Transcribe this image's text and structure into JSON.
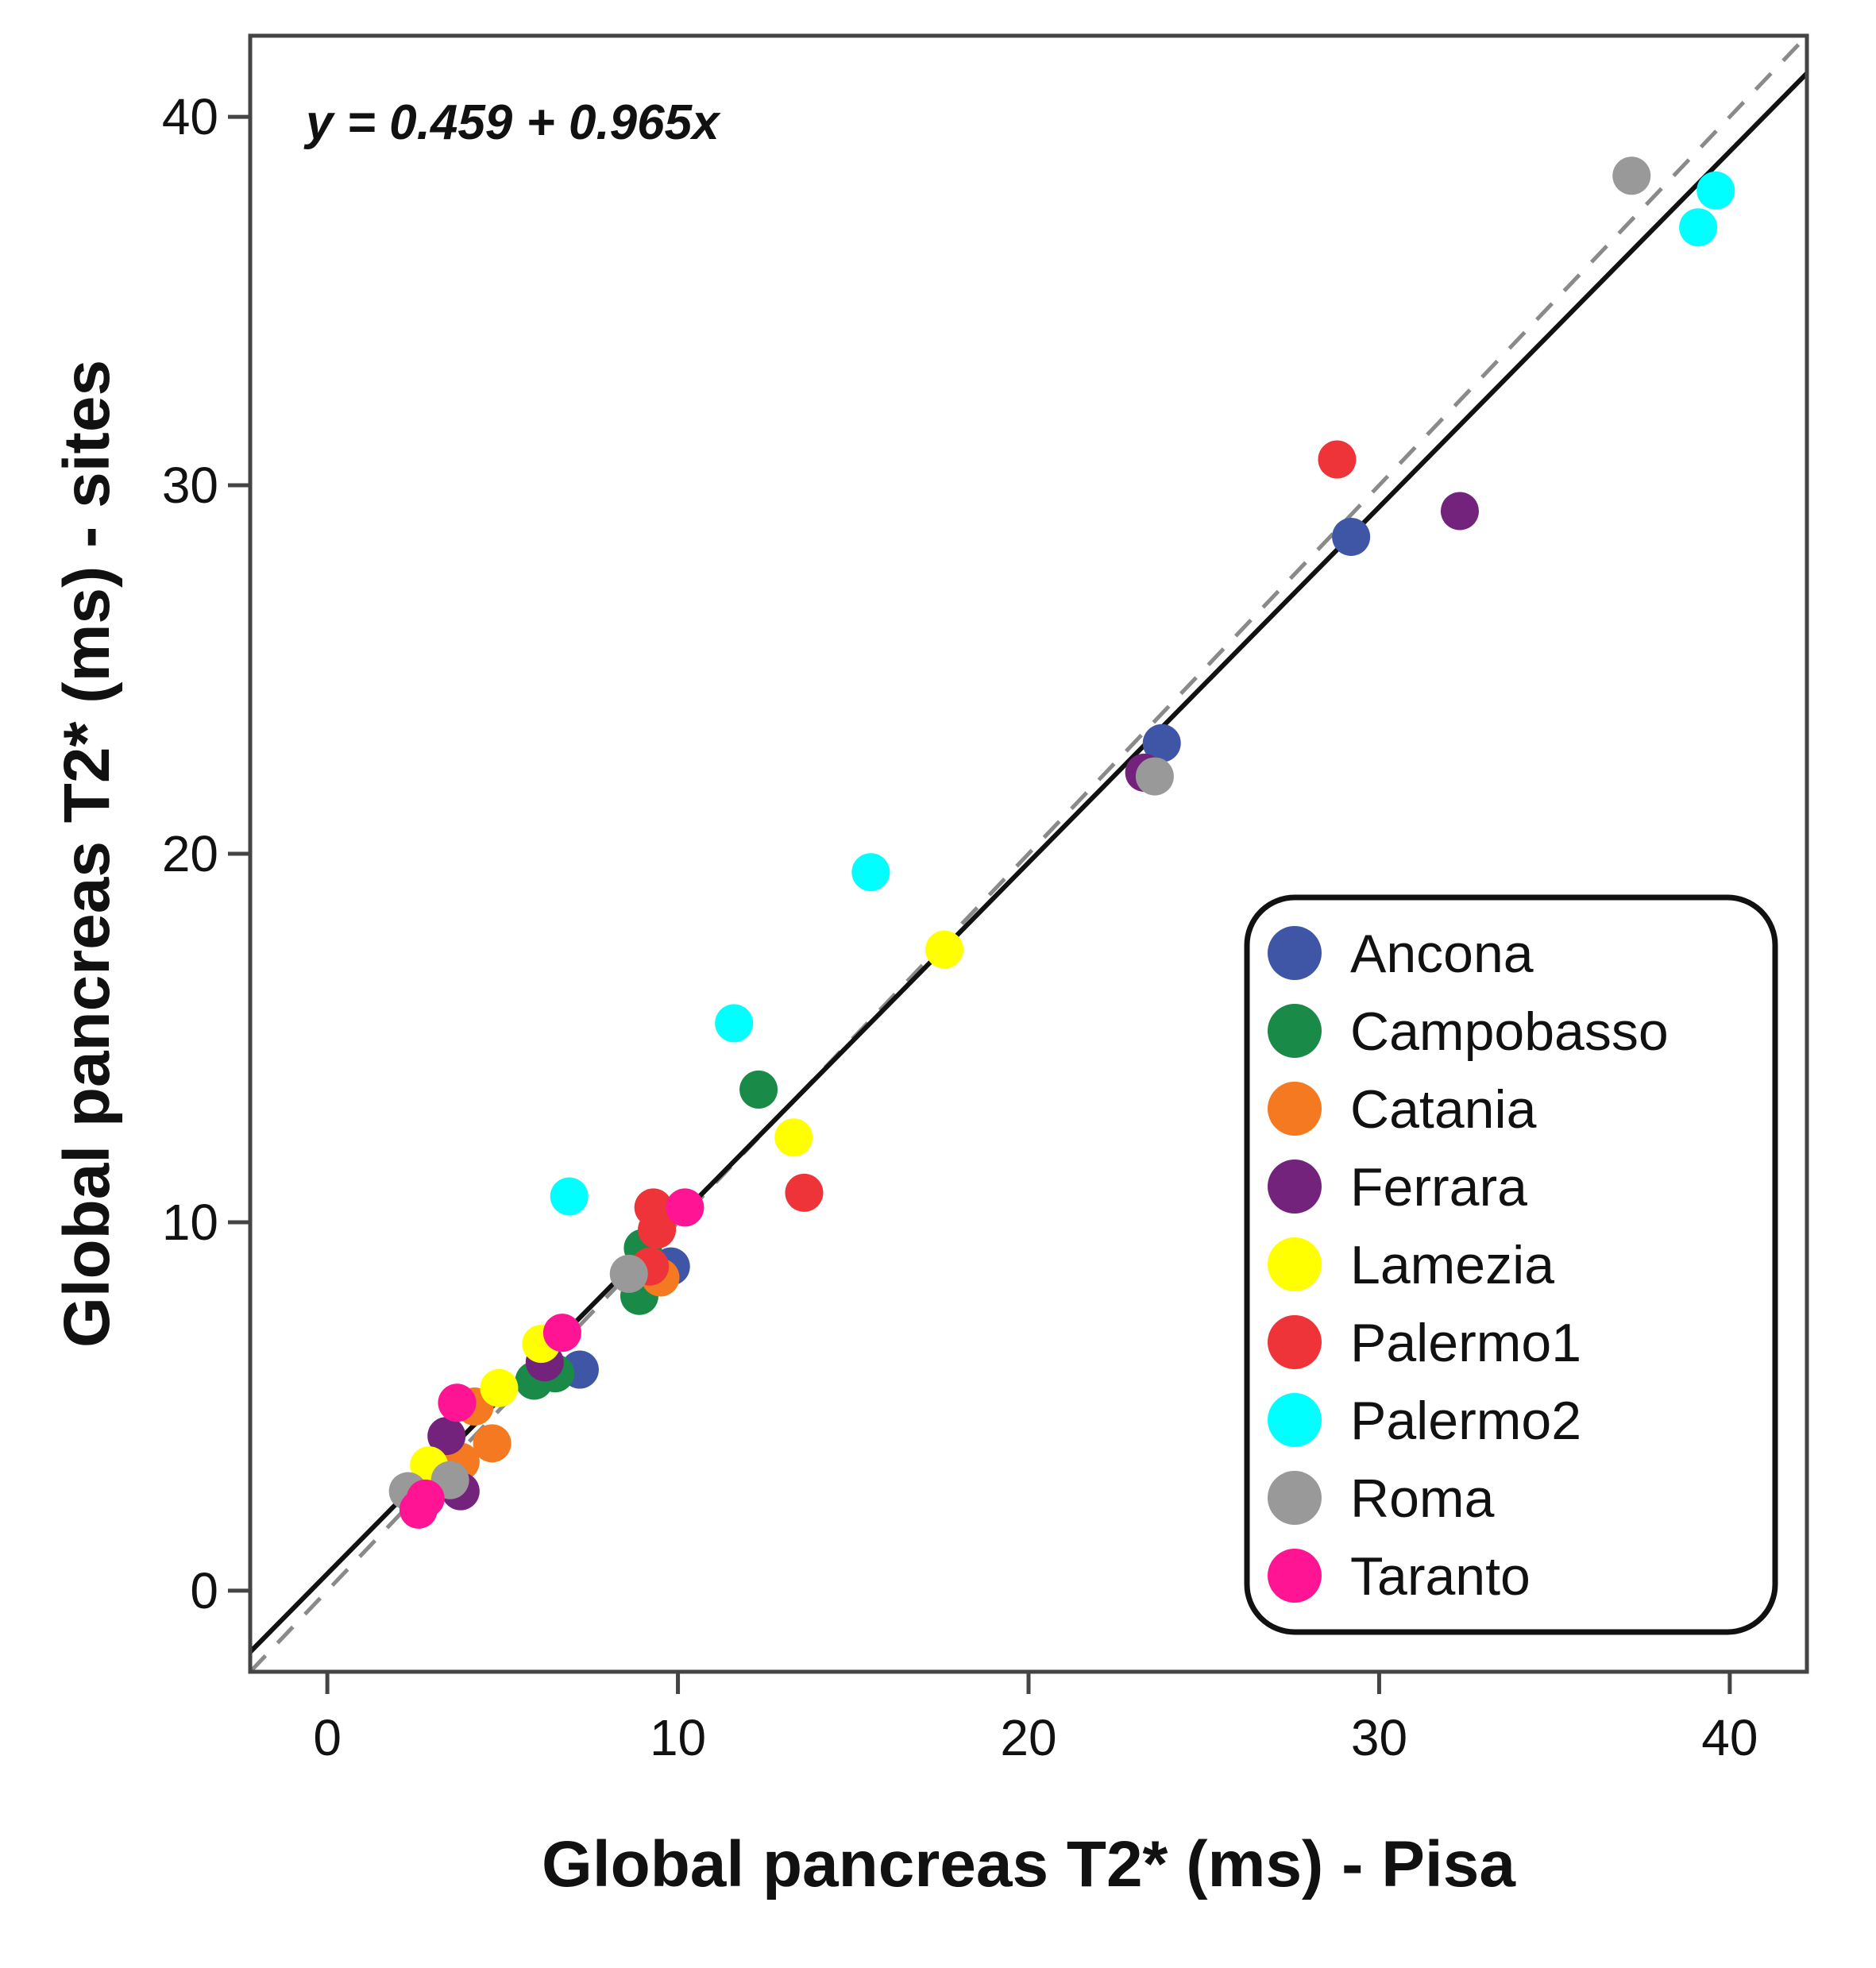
{
  "chart_data": {
    "type": "scatter",
    "xlabel": "Global pancreas T2* (ms) - Pisa",
    "ylabel": "Global pancreas T2* (ms) - sites",
    "xlim": [
      -2.2,
      42.2
    ],
    "ylim": [
      -2.2,
      42.2
    ],
    "xticks": [
      "0",
      "10",
      "20",
      "30",
      "40"
    ],
    "yticks": [
      "0",
      "10",
      "20",
      "30",
      "40"
    ],
    "annotation": "y = 0.459 + 0.965x",
    "regression": {
      "intercept": 0.459,
      "slope": 0.965
    },
    "identity_line": true,
    "grid": false,
    "legend_position": "bottom-right",
    "series": [
      {
        "name": "Ancona",
        "color": "#3f56a6",
        "points": [
          [
            29.2,
            28.6
          ],
          [
            23.8,
            23.0
          ],
          [
            9.8,
            8.8
          ],
          [
            7.2,
            6.0
          ]
        ]
      },
      {
        "name": "Campobasso",
        "color": "#1a8a48",
        "points": [
          [
            12.3,
            13.6
          ],
          [
            8.9,
            8.0
          ],
          [
            9.0,
            9.3
          ],
          [
            6.5,
            5.9
          ],
          [
            5.9,
            5.7
          ]
        ]
      },
      {
        "name": "Catania",
        "color": "#f47920",
        "points": [
          [
            4.7,
            4.0
          ],
          [
            9.5,
            8.5
          ],
          [
            4.2,
            5.0
          ],
          [
            3.8,
            3.5
          ]
        ]
      },
      {
        "name": "Ferrara",
        "color": "#74237c",
        "points": [
          [
            32.3,
            29.3
          ],
          [
            23.3,
            22.2
          ],
          [
            3.8,
            2.7
          ],
          [
            3.4,
            4.2
          ],
          [
            6.2,
            6.2
          ]
        ]
      },
      {
        "name": "Lamezia",
        "color": "#ffff00",
        "points": [
          [
            17.6,
            17.4
          ],
          [
            13.3,
            12.3
          ],
          [
            6.1,
            6.7
          ],
          [
            4.9,
            5.5
          ],
          [
            2.9,
            3.4
          ]
        ]
      },
      {
        "name": "Palermo1",
        "color": "#ee3438",
        "points": [
          [
            28.8,
            30.7
          ],
          [
            13.6,
            10.8
          ],
          [
            9.3,
            10.4
          ],
          [
            9.4,
            9.8
          ],
          [
            9.2,
            8.8
          ]
        ]
      },
      {
        "name": "Palermo2",
        "color": "#00ffff",
        "points": [
          [
            39.6,
            38.0
          ],
          [
            39.1,
            37.0
          ],
          [
            15.5,
            19.5
          ],
          [
            11.6,
            15.4
          ],
          [
            6.9,
            10.7
          ]
        ]
      },
      {
        "name": "Roma",
        "color": "#999999",
        "points": [
          [
            37.2,
            38.4
          ],
          [
            23.6,
            22.1
          ],
          [
            8.6,
            8.6
          ],
          [
            3.5,
            3.0
          ],
          [
            2.3,
            2.7
          ]
        ]
      },
      {
        "name": "Taranto",
        "color": "#ff1493",
        "points": [
          [
            10.2,
            10.4
          ],
          [
            6.7,
            7.0
          ],
          [
            3.7,
            5.1
          ],
          [
            2.6,
            2.2
          ],
          [
            2.8,
            2.5
          ]
        ]
      }
    ]
  }
}
